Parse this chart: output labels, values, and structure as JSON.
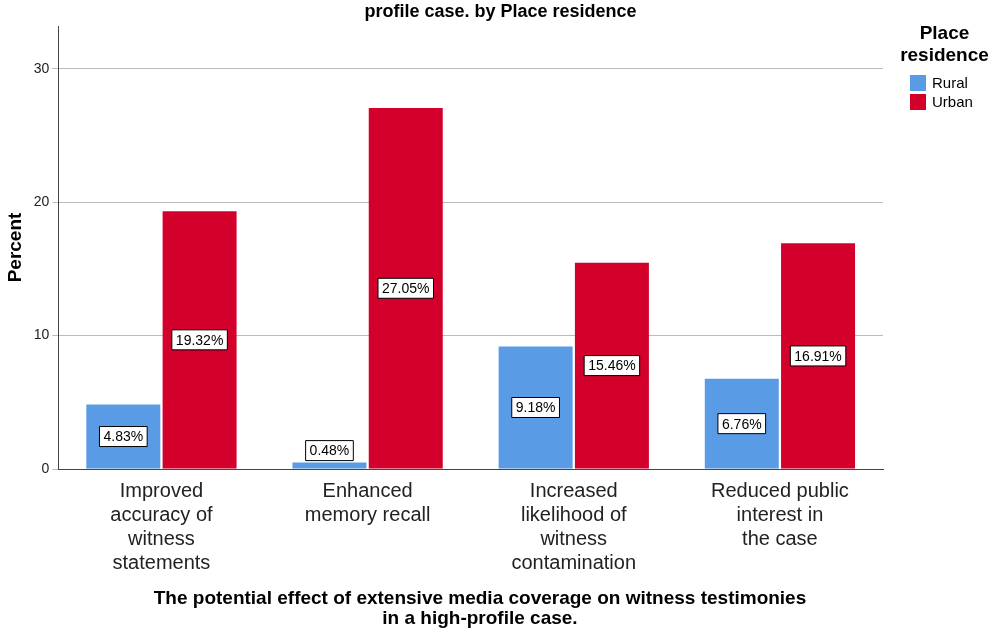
{
  "chart_data": {
    "type": "bar",
    "title": "profile case. by Place residence",
    "xlabel": "The potential effect of extensive media coverage on witness testimonies in a high-profile case.",
    "ylabel": "Percent",
    "legend_title": "Place residence",
    "categories": [
      "Improved accuracy of witness statements",
      "Enhanced memory recall",
      "Increased likelihood of witness contamination",
      "Reduced public interest in the case"
    ],
    "series": [
      {
        "name": "Rural",
        "color": "#5a9be6",
        "values": [
          4.83,
          0.48,
          9.18,
          6.76
        ],
        "value_labels": [
          "4.83%",
          "0.48%",
          "9.18%",
          "6.76%"
        ]
      },
      {
        "name": "Urban",
        "color": "#d2002b",
        "values": [
          19.32,
          27.05,
          15.46,
          16.91
        ],
        "value_labels": [
          "19.32%",
          "27.05%",
          "15.46%",
          "16.91%"
        ]
      }
    ],
    "ylim": [
      0,
      33.2
    ],
    "yticks": [
      0,
      10,
      20,
      30
    ],
    "grid": "y",
    "legend": "top right"
  }
}
